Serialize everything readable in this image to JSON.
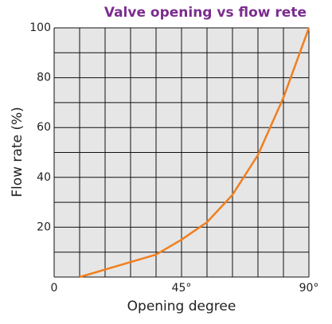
{
  "chart_data": {
    "type": "line",
    "title": "Valve opening vs flow rete",
    "x_label": "Opening degree",
    "y_label": "Flow rate (%)",
    "x": [
      9,
      18,
      27,
      36,
      45,
      54,
      63,
      72,
      81,
      90
    ],
    "series": [
      {
        "name": "Flow rate",
        "color": "#f07f1e",
        "values": [
          0,
          3,
          6,
          9,
          15,
          22,
          33,
          49,
          72,
          100
        ]
      }
    ],
    "xlim": [
      0,
      90
    ],
    "ylim": [
      0,
      100
    ],
    "xticks": [
      0,
      {
        "value": 45,
        "label": "45°"
      },
      {
        "value": 90,
        "label": "90°"
      }
    ],
    "yticks": [
      20,
      40,
      60,
      80,
      100
    ],
    "xgrid": [
      0,
      9,
      18,
      27,
      36,
      45,
      54,
      63,
      72,
      81,
      90
    ],
    "ygrid": [
      0,
      10,
      20,
      30,
      40,
      50,
      60,
      70,
      80,
      90,
      100
    ],
    "grid": true
  }
}
